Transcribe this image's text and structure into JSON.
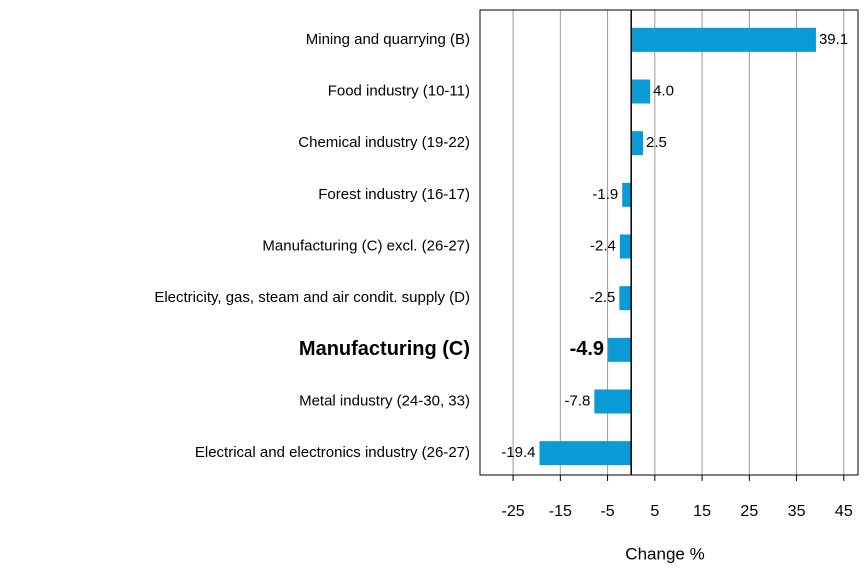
{
  "chart_data": {
    "type": "bar",
    "orientation": "horizontal",
    "categories": [
      "Mining and quarrying (B)",
      "Food industry (10-11)",
      "Chemical industry (19-22)",
      "Forest industry (16-17)",
      "Manufacturing (C) excl. (26-27)",
      "Electricity, gas, steam and air condit. supply (D)",
      "Manufacturing (C)",
      "Metal industry (24-30, 33)",
      "Electrical and electronics industry (26-27)"
    ],
    "values": [
      39.1,
      4.0,
      2.5,
      -1.9,
      -2.4,
      -2.5,
      -4.9,
      -7.8,
      -19.4
    ],
    "value_labels": [
      "39.1",
      "4.0",
      "2.5",
      "-1.9",
      "-2.4",
      "-2.5",
      "-4.9",
      "-7.8",
      "-19.4"
    ],
    "color": "#0a9ad6",
    "highlight": 6,
    "xlabel": "Change %",
    "xlim": [
      -32,
      48
    ],
    "xticks": [
      -25,
      -15,
      -5,
      5,
      15,
      25,
      35,
      45
    ],
    "grid": true
  }
}
